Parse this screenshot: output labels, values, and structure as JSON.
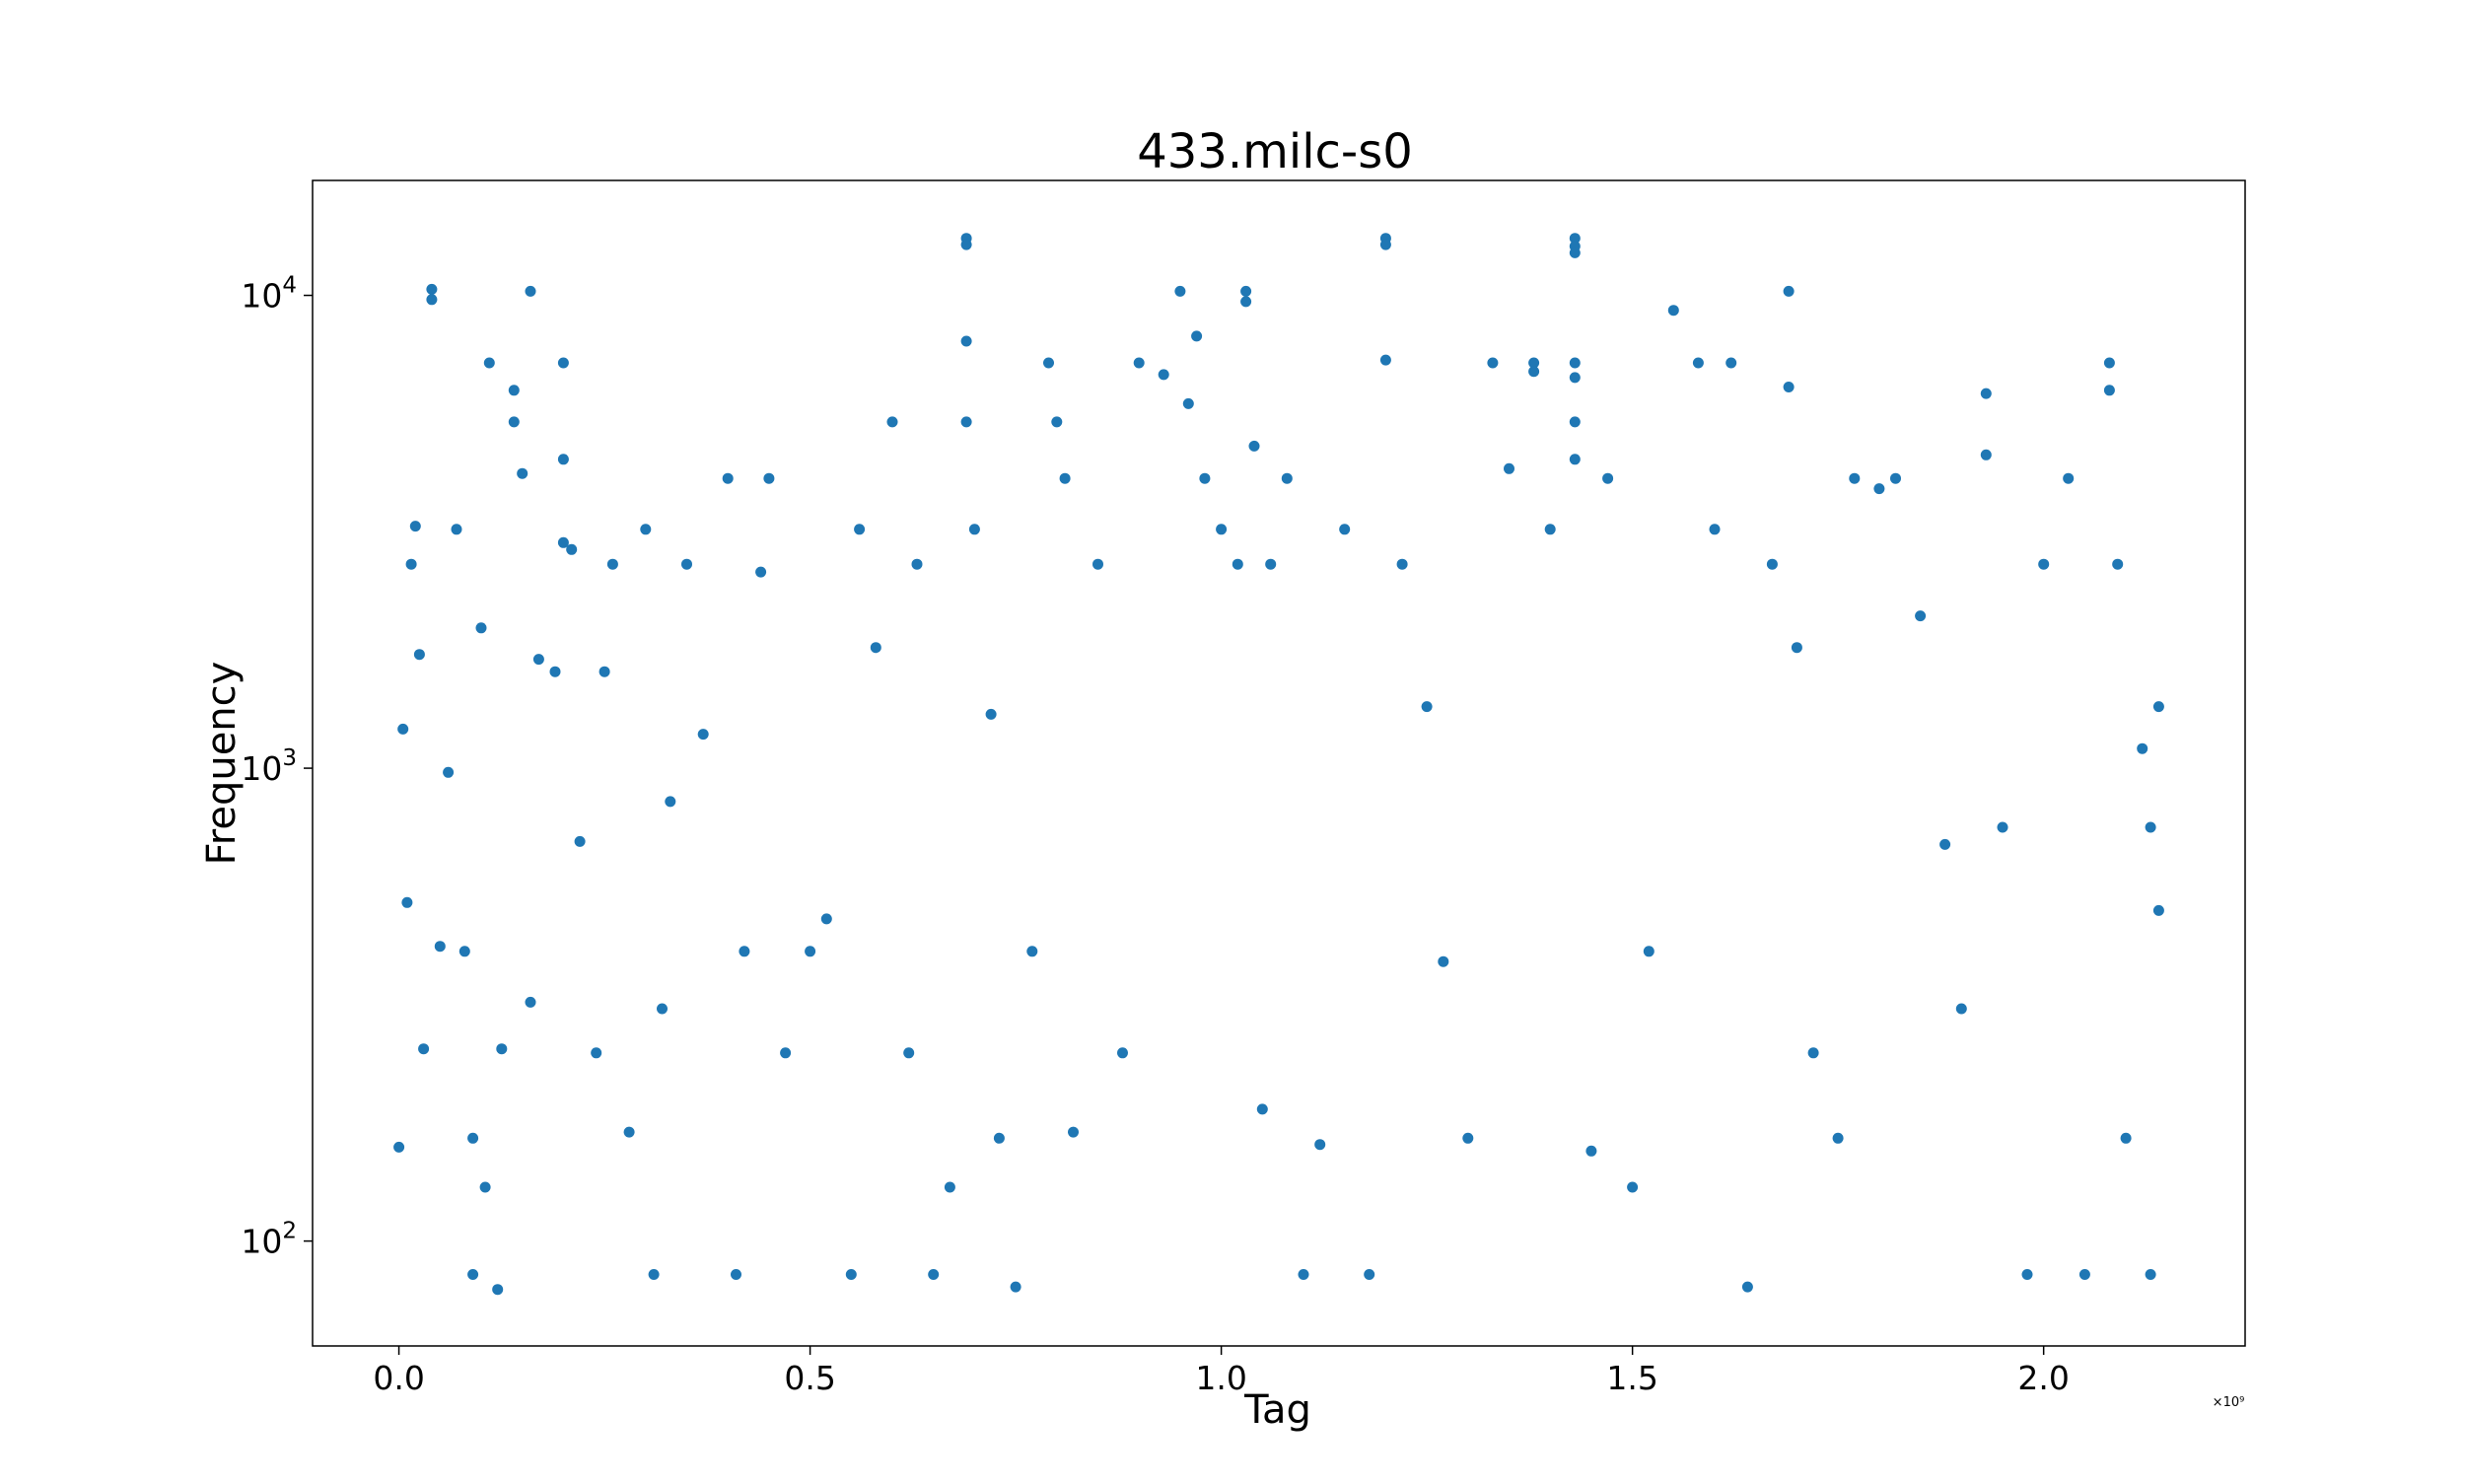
{
  "chart_data": {
    "type": "scatter",
    "title": "433.milc-s0",
    "xlabel": "Tag",
    "ylabel": "Frequency",
    "x_offset_label": "×10⁹",
    "xscale": "linear",
    "yscale": "log",
    "xlim": [
      -0.105,
      2.245
    ],
    "ylim": [
      60,
      17500
    ],
    "grid": false,
    "marker_color": "#1f77b4",
    "x_ticks": [
      {
        "value": 0.0,
        "label": "0.0"
      },
      {
        "value": 0.5,
        "label": "0.5"
      },
      {
        "value": 1.0,
        "label": "1.0"
      },
      {
        "value": 1.5,
        "label": "1.5"
      },
      {
        "value": 2.0,
        "label": "2.0"
      }
    ],
    "y_ticks": [
      {
        "value": 100,
        "base": "10",
        "exp": "2"
      },
      {
        "value": 1000,
        "base": "10",
        "exp": "3"
      },
      {
        "value": 10000,
        "base": "10",
        "exp": "4"
      }
    ],
    "series": [
      {
        "points": [
          [
            0.0,
            158
          ],
          [
            0.005,
            1210
          ],
          [
            0.01,
            520
          ],
          [
            0.015,
            2700
          ],
          [
            0.02,
            3250
          ],
          [
            0.025,
            1740
          ],
          [
            0.03,
            255
          ],
          [
            0.04,
            10300
          ],
          [
            0.04,
            9800
          ],
          [
            0.05,
            420
          ],
          [
            0.06,
            980
          ],
          [
            0.07,
            3200
          ],
          [
            0.08,
            410
          ],
          [
            0.09,
            85
          ],
          [
            0.09,
            165
          ],
          [
            0.1,
            1980
          ],
          [
            0.105,
            130
          ],
          [
            0.11,
            7200
          ],
          [
            0.12,
            79
          ],
          [
            0.125,
            255
          ],
          [
            0.14,
            6300
          ],
          [
            0.14,
            5400
          ],
          [
            0.15,
            4200
          ],
          [
            0.16,
            10200
          ],
          [
            0.16,
            320
          ],
          [
            0.17,
            1700
          ],
          [
            0.19,
            1600
          ],
          [
            0.2,
            7200
          ],
          [
            0.2,
            4500
          ],
          [
            0.2,
            3000
          ],
          [
            0.21,
            2900
          ],
          [
            0.22,
            700
          ],
          [
            0.24,
            250
          ],
          [
            0.25,
            1600
          ],
          [
            0.26,
            2700
          ],
          [
            0.28,
            170
          ],
          [
            0.3,
            3200
          ],
          [
            0.31,
            85
          ],
          [
            0.32,
            310
          ],
          [
            0.33,
            850
          ],
          [
            0.35,
            2700
          ],
          [
            0.37,
            1180
          ],
          [
            0.4,
            4100
          ],
          [
            0.41,
            85
          ],
          [
            0.42,
            410
          ],
          [
            0.44,
            2600
          ],
          [
            0.45,
            4100
          ],
          [
            0.47,
            250
          ],
          [
            0.5,
            410
          ],
          [
            0.52,
            480
          ],
          [
            0.55,
            85
          ],
          [
            0.56,
            3200
          ],
          [
            0.58,
            1800
          ],
          [
            0.6,
            5400
          ],
          [
            0.62,
            250
          ],
          [
            0.63,
            2700
          ],
          [
            0.65,
            85
          ],
          [
            0.67,
            130
          ],
          [
            0.69,
            13200
          ],
          [
            0.69,
            12800
          ],
          [
            0.69,
            8000
          ],
          [
            0.69,
            5400
          ],
          [
            0.7,
            3200
          ],
          [
            0.72,
            1300
          ],
          [
            0.73,
            165
          ],
          [
            0.75,
            80
          ],
          [
            0.77,
            410
          ],
          [
            0.79,
            7200
          ],
          [
            0.8,
            5400
          ],
          [
            0.81,
            4100
          ],
          [
            0.82,
            170
          ],
          [
            0.85,
            2700
          ],
          [
            0.88,
            250
          ],
          [
            0.9,
            7200
          ],
          [
            0.93,
            6800
          ],
          [
            0.95,
            10200
          ],
          [
            0.96,
            5900
          ],
          [
            0.97,
            8200
          ],
          [
            0.98,
            4100
          ],
          [
            1.0,
            3200
          ],
          [
            1.02,
            2700
          ],
          [
            1.03,
            10200
          ],
          [
            1.03,
            9700
          ],
          [
            1.04,
            4800
          ],
          [
            1.05,
            190
          ],
          [
            1.06,
            2700
          ],
          [
            1.08,
            4100
          ],
          [
            1.1,
            85
          ],
          [
            1.12,
            160
          ],
          [
            1.15,
            3200
          ],
          [
            1.18,
            85
          ],
          [
            1.2,
            13200
          ],
          [
            1.2,
            12800
          ],
          [
            1.2,
            7300
          ],
          [
            1.22,
            2700
          ],
          [
            1.25,
            1350
          ],
          [
            1.27,
            390
          ],
          [
            1.3,
            165
          ],
          [
            1.33,
            7200
          ],
          [
            1.35,
            4300
          ],
          [
            1.38,
            7200
          ],
          [
            1.38,
            6900
          ],
          [
            1.4,
            3200
          ],
          [
            1.43,
            13200
          ],
          [
            1.43,
            12700
          ],
          [
            1.43,
            12300
          ],
          [
            1.43,
            7200
          ],
          [
            1.43,
            6700
          ],
          [
            1.43,
            5400
          ],
          [
            1.43,
            4500
          ],
          [
            1.45,
            155
          ],
          [
            1.47,
            4100
          ],
          [
            1.5,
            130
          ],
          [
            1.52,
            410
          ],
          [
            1.55,
            9300
          ],
          [
            1.58,
            7200
          ],
          [
            1.6,
            3200
          ],
          [
            1.62,
            7200
          ],
          [
            1.64,
            80
          ],
          [
            1.67,
            2700
          ],
          [
            1.69,
            10200
          ],
          [
            1.69,
            6400
          ],
          [
            1.7,
            1800
          ],
          [
            1.72,
            250
          ],
          [
            1.75,
            165
          ],
          [
            1.77,
            4100
          ],
          [
            1.8,
            3900
          ],
          [
            1.82,
            4100
          ],
          [
            1.85,
            2100
          ],
          [
            1.88,
            690
          ],
          [
            1.9,
            310
          ],
          [
            1.93,
            6200
          ],
          [
            1.93,
            4600
          ],
          [
            1.95,
            750
          ],
          [
            1.98,
            85
          ],
          [
            2.0,
            2700
          ],
          [
            2.03,
            4100
          ],
          [
            2.05,
            85
          ],
          [
            2.08,
            7200
          ],
          [
            2.08,
            6300
          ],
          [
            2.09,
            2700
          ],
          [
            2.1,
            165
          ],
          [
            2.12,
            1100
          ],
          [
            2.13,
            750
          ],
          [
            2.14,
            1350
          ],
          [
            2.14,
            500
          ],
          [
            2.13,
            85
          ]
        ]
      }
    ]
  }
}
